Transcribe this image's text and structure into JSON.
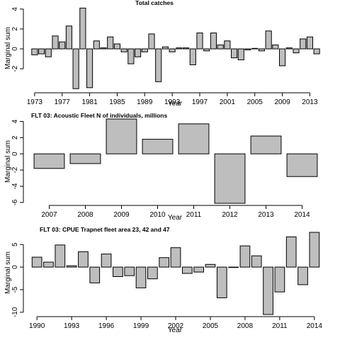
{
  "chart_data": [
    {
      "type": "bar",
      "title": "Total catches",
      "xlabel": "Year",
      "ylabel": "Marginal sum",
      "ylim": [
        -4.2,
        4.2
      ],
      "yticks": [
        -2,
        0,
        2,
        4
      ],
      "xtick_labels": [
        "1973",
        "1977",
        "1981",
        "1985",
        "1989",
        "1993",
        "1997",
        "2001",
        "2005",
        "2009",
        "2013"
      ],
      "categories": [
        "1973",
        "1974",
        "1975",
        "1976",
        "1977",
        "1978",
        "1979",
        "1980",
        "1981",
        "1982",
        "1983",
        "1984",
        "1985",
        "1986",
        "1987",
        "1988",
        "1989",
        "1990",
        "1991",
        "1992",
        "1993",
        "1994",
        "1995",
        "1996",
        "1997",
        "1998",
        "1999",
        "2000",
        "2001",
        "2002",
        "2003",
        "2004",
        "2005",
        "2006",
        "2007",
        "2008",
        "2009",
        "2010",
        "2011",
        "2012",
        "2013",
        "2014"
      ],
      "values": [
        -0.6,
        -0.5,
        -0.8,
        1.3,
        0.7,
        2.3,
        -4.0,
        4.1,
        -3.9,
        0.8,
        0.1,
        1.2,
        0.5,
        -0.3,
        -1.5,
        -0.8,
        -0.3,
        1.5,
        -3.3,
        0.2,
        -0.3,
        0.1,
        0.1,
        -1.6,
        1.6,
        -0.2,
        1.6,
        0.4,
        0.8,
        -0.9,
        -1.1,
        -0.1,
        0.05,
        -0.2,
        1.8,
        0.4,
        -1.7,
        0.1,
        -0.4,
        1.0,
        1.2,
        -0.5
      ]
    },
    {
      "type": "bar",
      "title": "FLT 03: Acoustic Fleet   N of individuals, millions",
      "xlabel": "Year",
      "ylabel": "Marginal sum",
      "ylim": [
        -6.1,
        4.3
      ],
      "yticks": [
        -6,
        -4,
        -2,
        0,
        2,
        4
      ],
      "xtick_labels": [
        "2007",
        "2008",
        "2009",
        "2010",
        "2011",
        "2012",
        "2013",
        "2014"
      ],
      "categories": [
        "2007",
        "2008",
        "2009",
        "2010",
        "2011",
        "2012",
        "2013",
        "2014"
      ],
      "values": [
        -1.8,
        -1.2,
        4.3,
        1.8,
        3.7,
        -6.1,
        2.2,
        -2.8
      ]
    },
    {
      "type": "bar",
      "title": "FLT 03: CPUE Trapnet fleet area 23, 42 and 47",
      "xlabel": "Year",
      "ylabel": "Marginal sum",
      "ylim": [
        -10.5,
        7.7
      ],
      "yticks": [
        -10,
        -5,
        0,
        5
      ],
      "xtick_labels": [
        "1990",
        "1993",
        "1996",
        "1999",
        "2002",
        "2005",
        "2008",
        "2011",
        "2014"
      ],
      "categories": [
        "1990",
        "1991",
        "1992",
        "1993",
        "1994",
        "1995",
        "1996",
        "1997",
        "1998",
        "1999",
        "2000",
        "2001",
        "2002",
        "2003",
        "2004",
        "2005",
        "2006",
        "2007",
        "2008",
        "2009",
        "2010",
        "2011",
        "2012",
        "2013",
        "2014"
      ],
      "values": [
        2.2,
        1.1,
        4.9,
        0.3,
        3.4,
        -3.5,
        2.9,
        -2.1,
        -1.9,
        -4.6,
        -2.6,
        2.1,
        4.3,
        -1.4,
        -1.1,
        0.6,
        -6.8,
        0.0,
        4.7,
        2.5,
        -10.5,
        -5.5,
        6.7,
        -3.9,
        7.7
      ]
    }
  ]
}
